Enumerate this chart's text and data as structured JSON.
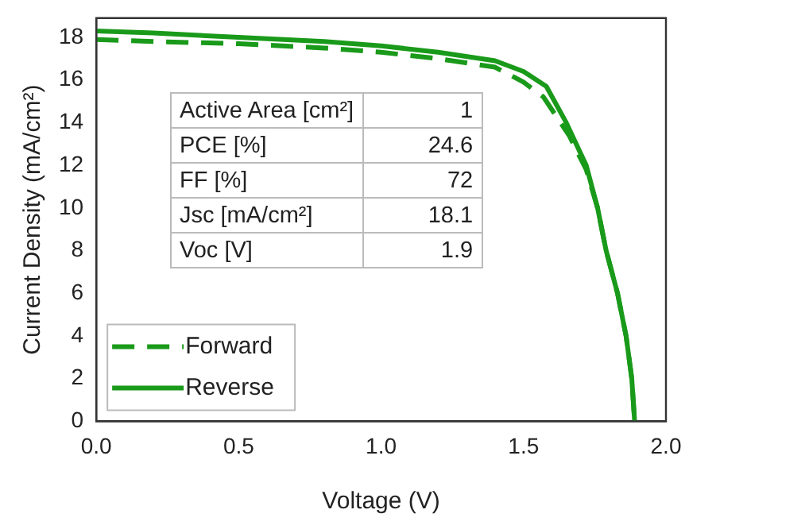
{
  "chart_data": {
    "type": "line",
    "xlabel": "Voltage (V)",
    "ylabel": "Current Density (mA/cm²)",
    "xlim": [
      0,
      2.0
    ],
    "xticks": [
      {
        "value": 0,
        "label": "0.0"
      },
      0.5,
      {
        "value": 1,
        "label": "1.0"
      },
      1.5,
      {
        "value": 2,
        "label": "2.0"
      }
    ],
    "ylim": [
      0,
      18.9
    ],
    "yticks": [
      0,
      2,
      4,
      6,
      8,
      10,
      12,
      14,
      16,
      18
    ],
    "legend": "bottom left",
    "grid": false,
    "marker": "none",
    "annotations": [
      "Active Area  [cm²]",
      "1",
      "PCE [%]",
      "24.6",
      "FF [%]",
      "72",
      "Jsc [mA/cm²]",
      "18.1",
      "Voc [V]",
      "1.9"
    ],
    "series": [
      {
        "name": "Forward",
        "color": "#1a9a1a",
        "line_style": "dashed",
        "x": [
          0,
          0.2,
          0.5,
          0.8,
          1.0,
          1.2,
          1.4,
          1.5,
          1.57,
          1.62,
          1.66,
          1.72,
          1.76,
          1.79,
          1.83,
          1.86,
          1.88,
          1.89
        ],
        "values": [
          17.9,
          17.8,
          17.7,
          17.5,
          17.3,
          17.0,
          16.6,
          15.9,
          15.2,
          14.2,
          13.4,
          11.8,
          10.0,
          8.0,
          6.0,
          4.0,
          2.0,
          0
        ]
      },
      {
        "name": "Reverse",
        "color": "#1a9a1a",
        "line_style": "solid",
        "x": [
          0,
          0.2,
          0.5,
          0.8,
          1.0,
          1.2,
          1.4,
          1.5,
          1.58,
          1.65,
          1.72,
          1.76,
          1.79,
          1.83,
          1.86,
          1.88,
          1.89
        ],
        "values": [
          18.3,
          18.2,
          18.0,
          17.8,
          17.6,
          17.3,
          16.9,
          16.4,
          15.7,
          14.0,
          12.0,
          10.0,
          8.0,
          6.0,
          4.0,
          2.0,
          0
        ]
      }
    ]
  }
}
